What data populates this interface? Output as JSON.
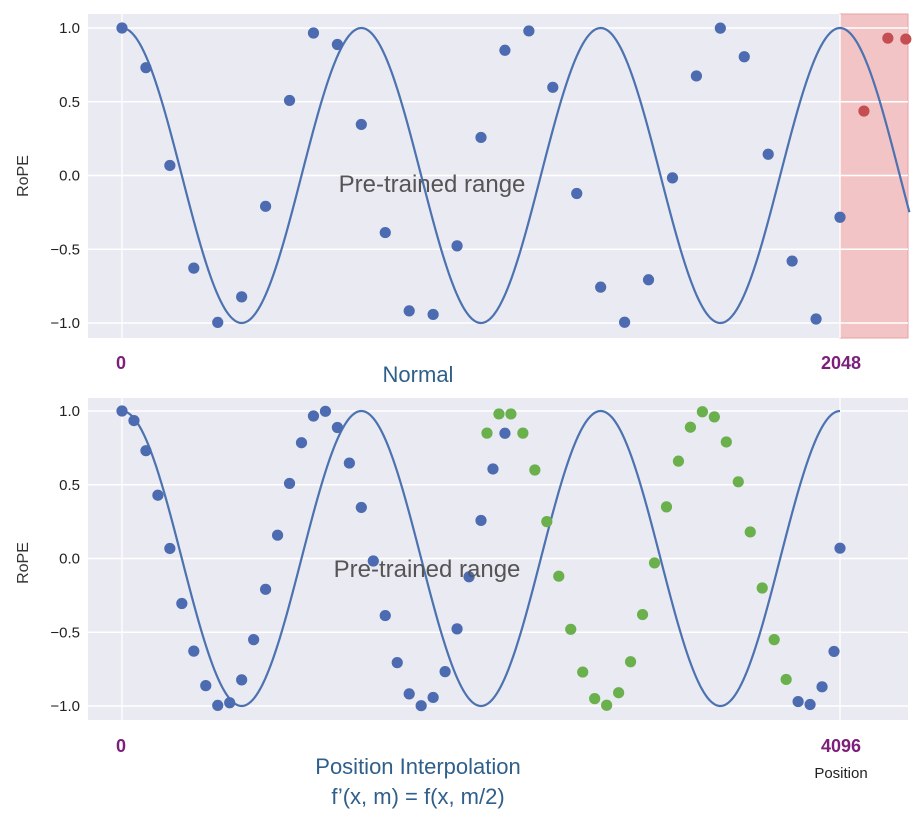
{
  "colors": {
    "panel_bg": "#eaeaf2",
    "grid": "#ffffff",
    "curve": "#4c72b0",
    "point_trained": "#4c6bb0",
    "point_extrapolated": "#c44e52",
    "point_interpolated": "#6ab04c",
    "extrapolation_band": "#f2c4c6",
    "position_label": "#7b1f7b",
    "caption": "#2f5f8a",
    "overlay_text": "#555555"
  },
  "chart_data": [
    {
      "type": "scatter",
      "title": "Normal",
      "ylabel": "RoPE",
      "xlabel": "",
      "annotation": "Pre-trained range",
      "x_start_label": "0",
      "x_end_label": "2048",
      "yticks": [
        "1.0",
        "0.5",
        "0.0",
        "−0.5",
        "−1.0"
      ],
      "yticks_values": [
        1.0,
        0.5,
        0.0,
        -0.5,
        -1.0
      ],
      "ylim": [
        -1.05,
        1.05
      ],
      "xlim": [
        -0.12,
        6.58
      ],
      "curve": {
        "function": "cos",
        "x_range": [
          0,
          6.58
        ]
      },
      "extrapolation_band_x": [
        6.0,
        6.58
      ],
      "series": [
        {
          "role": "trained",
          "x": [
            0.0,
            0.2,
            0.4,
            0.6,
            0.8,
            1.0,
            1.2,
            1.4,
            1.6,
            1.8,
            2.0,
            2.2,
            2.4,
            2.6,
            2.8,
            3.0,
            3.2,
            3.4,
            3.6,
            3.8,
            4.0,
            4.2,
            4.4,
            4.6,
            4.8,
            5.0,
            5.2,
            5.4,
            5.6,
            5.8,
            6.0
          ],
          "y": [
            1.0,
            0.731,
            0.068,
            -0.628,
            -0.996,
            -0.823,
            -0.209,
            0.509,
            0.966,
            0.888,
            0.346,
            -0.387,
            -0.918,
            -0.942,
            -0.477,
            0.258,
            0.849,
            0.98,
            0.598,
            -0.122,
            -0.757,
            -0.995,
            -0.707,
            -0.016,
            0.675,
            0.999,
            0.805,
            0.144,
            -0.58,
            -0.973,
            -0.283
          ]
        },
        {
          "role": "extrapolated",
          "x": [
            6.2,
            6.4,
            6.55
          ],
          "y": [
            0.437,
            0.931,
            0.925
          ]
        }
      ]
    },
    {
      "type": "scatter",
      "title": "Position Interpolation",
      "subtitle": "f’(x, m) = f(x, m/2)",
      "ylabel": "RoPE",
      "xlabel": "Position",
      "annotation": "Pre-trained range",
      "x_start_label": "0",
      "x_end_label": "4096",
      "yticks": [
        "1.0",
        "0.5",
        "0.0",
        "−0.5",
        "−1.0"
      ],
      "yticks_values": [
        1.0,
        0.5,
        0.0,
        -0.5,
        -1.0
      ],
      "ylim": [
        -1.05,
        1.05
      ],
      "xlim": [
        -0.12,
        6.58
      ],
      "curve": {
        "function": "cos",
        "x_range": [
          0,
          6.0
        ]
      },
      "series": [
        {
          "role": "trained",
          "x": [
            0.0,
            0.1,
            0.2,
            0.3,
            0.4,
            0.5,
            0.6,
            0.7,
            0.8,
            0.9,
            1.0,
            1.1,
            1.2,
            1.3,
            1.4,
            1.5,
            1.6,
            1.7,
            1.8,
            1.9,
            2.0,
            2.1,
            2.2,
            2.3,
            2.4,
            2.5,
            2.6,
            2.7,
            2.8,
            2.9,
            3.0,
            3.1,
            3.2
          ],
          "y": [
            1.0,
            0.935,
            0.731,
            0.429,
            0.068,
            -0.305,
            -0.628,
            -0.862,
            -0.996,
            -0.978,
            -0.823,
            -0.55,
            -0.209,
            0.158,
            0.509,
            0.785,
            0.966,
            0.998,
            0.888,
            0.647,
            0.346,
            -0.017,
            -0.387,
            -0.706,
            -0.918,
            -0.998,
            -0.942,
            -0.767,
            -0.477,
            -0.124,
            0.258,
            0.607,
            0.849
          ]
        },
        {
          "role": "interpolated",
          "x": [
            3.05,
            3.15,
            3.25,
            3.35,
            3.45,
            3.55,
            3.65,
            3.75,
            3.85,
            3.95,
            4.05,
            4.15,
            4.25
          ],
          "y": [
            0.85,
            0.98,
            0.98,
            0.85,
            0.6,
            0.25,
            -0.12,
            -0.48,
            -0.77,
            -0.95,
            -0.995,
            -0.91,
            -0.7
          ]
        },
        {
          "role": "interpolated",
          "x": [
            4.35,
            4.45,
            4.55,
            4.65,
            4.75,
            4.85,
            4.95,
            5.05,
            5.15,
            5.25,
            5.35,
            5.45,
            5.55
          ],
          "y": [
            -0.38,
            -0.03,
            0.35,
            0.66,
            0.89,
            0.995,
            0.96,
            0.79,
            0.52,
            0.18,
            -0.2,
            -0.55,
            -0.82
          ]
        },
        {
          "role": "trained",
          "x": [
            5.65,
            5.75,
            5.85,
            5.95,
            6.0
          ],
          "y": [
            -0.97,
            -0.99,
            -0.87,
            -0.63,
            0.07
          ]
        }
      ]
    }
  ]
}
